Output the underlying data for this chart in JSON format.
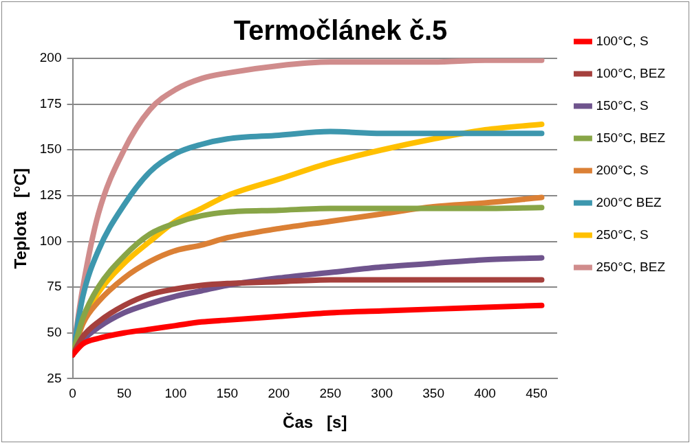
{
  "chart_data": {
    "type": "line",
    "title": "Termočlánek č.5",
    "xlabel": "Čas   [s]",
    "ylabel": "Teplota   [°C]",
    "x": [
      0,
      10,
      25,
      50,
      75,
      100,
      125,
      150,
      200,
      250,
      300,
      350,
      400,
      455
    ],
    "xlim": [
      0,
      470
    ],
    "xticks": [
      0,
      50,
      100,
      150,
      200,
      250,
      300,
      350,
      400,
      450
    ],
    "ylim": [
      25,
      200
    ],
    "yticks": [
      25,
      50,
      75,
      100,
      125,
      150,
      175,
      200
    ],
    "grid": "y",
    "legend": "right",
    "marker": "none",
    "line_style": "solid",
    "series": [
      {
        "name": "100°C, S",
        "color": "#ff0000",
        "values": [
          38,
          44,
          47,
          50,
          52,
          54,
          56,
          57,
          59,
          61,
          62,
          63,
          64,
          65
        ]
      },
      {
        "name": "100°C, BEZ",
        "color": "#a5403d",
        "values": [
          38,
          48,
          56,
          65,
          71,
          74,
          76,
          77,
          78,
          79,
          79,
          79,
          79,
          79
        ]
      },
      {
        "name": "150°C, S",
        "color": "#6f548d",
        "values": [
          38,
          46,
          53,
          61,
          66,
          70,
          73,
          76,
          80,
          83,
          86,
          88,
          90,
          91
        ]
      },
      {
        "name": "150°C, BEZ",
        "color": "#88a547",
        "values": [
          38,
          58,
          75,
          92,
          104,
          110,
          114,
          116,
          117,
          118,
          118,
          118,
          118,
          118.5
        ]
      },
      {
        "name": "200°C, S",
        "color": "#db8035",
        "values": [
          38,
          55,
          67,
          80,
          89,
          95,
          98,
          102,
          107,
          111,
          115,
          119,
          121,
          124
        ]
      },
      {
        "name": "200°C BEZ",
        "color": "#3d97ae",
        "values": [
          38,
          70,
          95,
          120,
          138,
          148,
          153,
          156,
          158,
          160,
          159,
          159,
          159,
          159
        ]
      },
      {
        "name": "250°C, S",
        "color": "#ffc000",
        "values": [
          38,
          56,
          72,
          88,
          100,
          111,
          118,
          125,
          134,
          143,
          150,
          156,
          161,
          164
        ]
      },
      {
        "name": "250°C, BEZ",
        "color": "#d08c8c",
        "values": [
          38,
          75,
          115,
          150,
          172,
          183,
          189,
          192,
          196,
          198,
          198,
          198,
          199,
          199
        ]
      }
    ]
  }
}
